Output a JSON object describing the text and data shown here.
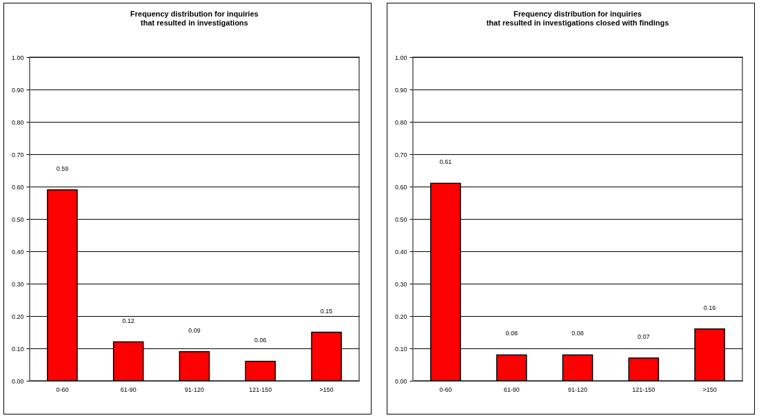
{
  "chart_data": [
    {
      "type": "bar",
      "title": "Frequency distribution for inquiries\nthat resulted in investigations",
      "categories": [
        "0-60",
        "61-90",
        "91-120",
        "121-150",
        ">150"
      ],
      "values": [
        0.59,
        0.12,
        0.09,
        0.06,
        0.15
      ],
      "color": "#ff0000",
      "data_labels": true,
      "grid": "y",
      "ylim": [
        0,
        1
      ],
      "yticks": [
        {
          "value": 0,
          "label": "0.00"
        },
        {
          "value": 0.1,
          "label": "0.10"
        },
        {
          "value": 0.2,
          "label": "0.20"
        },
        {
          "value": 0.3,
          "label": "0.30"
        },
        {
          "value": 0.4,
          "label": "0.40"
        },
        {
          "value": 0.5,
          "label": "0.50"
        },
        {
          "value": 0.6,
          "label": "0.60"
        },
        {
          "value": 0.7,
          "label": "0.70"
        },
        {
          "value": 0.8,
          "label": "0.80"
        },
        {
          "value": 0.9,
          "label": "0.90"
        },
        {
          "value": 1,
          "label": "1.00"
        }
      ]
    },
    {
      "type": "bar",
      "title": "Frequency distribution for inquiries\nthat resulted in investigations closed with findings",
      "categories": [
        "0-60",
        "61-90",
        "91-120",
        "121-150",
        ">150"
      ],
      "values": [
        0.61,
        0.08,
        0.08,
        0.07,
        0.16
      ],
      "color": "#ff0000",
      "data_labels": true,
      "grid": "y",
      "ylim": [
        0,
        1
      ],
      "yticks": [
        {
          "value": 0,
          "label": "0.00"
        },
        {
          "value": 0.1,
          "label": "0.10"
        },
        {
          "value": 0.2,
          "label": "0.20"
        },
        {
          "value": 0.3,
          "label": "0.30"
        },
        {
          "value": 0.4,
          "label": "0.40"
        },
        {
          "value": 0.5,
          "label": "0.50"
        },
        {
          "value": 0.6,
          "label": "0.60"
        },
        {
          "value": 0.7,
          "label": "0.70"
        },
        {
          "value": 0.8,
          "label": "0.80"
        },
        {
          "value": 0.9,
          "label": "0.90"
        },
        {
          "value": 1,
          "label": "1.00"
        }
      ]
    }
  ]
}
